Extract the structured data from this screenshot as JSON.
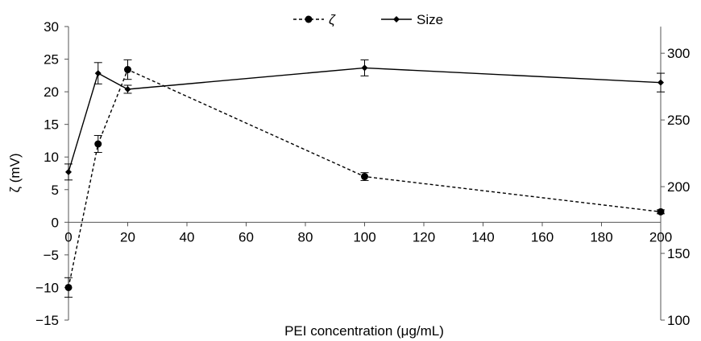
{
  "chart_data": {
    "type": "line",
    "title": "",
    "xlabel": "PEI concentration (μg/mL)",
    "ylabel": "ζ (mV)",
    "y2label": "",
    "xlim": [
      0,
      200
    ],
    "ylim": [
      -15,
      30
    ],
    "y2lim": [
      100,
      320
    ],
    "x_ticks": [
      0,
      20,
      40,
      60,
      80,
      100,
      120,
      140,
      160,
      180,
      200
    ],
    "y_ticks": [
      -15,
      -10,
      -5,
      0,
      5,
      10,
      15,
      20,
      25,
      30
    ],
    "y_tick_labels": [
      "−15",
      "−10",
      "−5",
      "0",
      "5",
      "10",
      "15",
      "20",
      "25",
      "30"
    ],
    "y2_ticks": [
      100,
      150,
      200,
      250,
      300
    ],
    "grid": false,
    "legend_position": "top-center",
    "series": [
      {
        "name": "ζ",
        "axis": "left",
        "style": "dashed",
        "marker": "circle",
        "color": "#000000",
        "x": [
          0,
          10,
          20,
          100,
          200
        ],
        "y": [
          -10.0,
          12.0,
          23.4,
          7.0,
          1.6
        ],
        "error": [
          1.5,
          1.3,
          1.5,
          0.6,
          0.3
        ]
      },
      {
        "name": "Size",
        "axis": "right",
        "style": "solid",
        "marker": "diamond",
        "color": "#000000",
        "x": [
          0,
          10,
          20,
          100,
          200
        ],
        "y": [
          211,
          285,
          273,
          289,
          278
        ],
        "error": [
          6,
          8,
          3,
          6,
          7
        ]
      }
    ]
  }
}
